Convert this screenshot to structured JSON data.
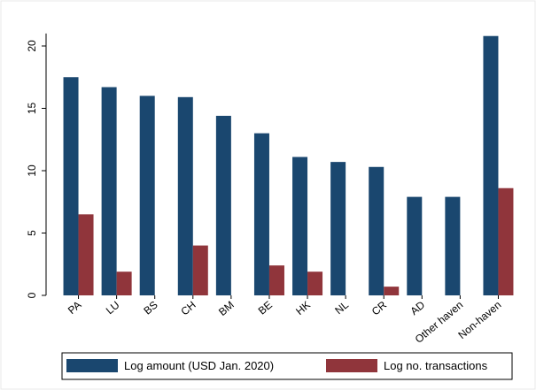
{
  "chart_data": {
    "type": "bar",
    "categories": [
      "PA",
      "LU",
      "BS",
      "CH",
      "BM",
      "BE",
      "HK",
      "NL",
      "CR",
      "AD",
      "Other haven",
      "Non-haven"
    ],
    "series": [
      {
        "name": "Log amount (USD Jan. 2020)",
        "color": "#1a476f",
        "values": [
          17.5,
          16.7,
          16.0,
          15.9,
          14.4,
          13.0,
          11.1,
          10.7,
          10.3,
          7.9,
          7.9,
          20.8
        ]
      },
      {
        "name": "Log no. transactions",
        "color": "#90353b",
        "values": [
          6.5,
          1.9,
          null,
          4.0,
          null,
          2.4,
          1.9,
          null,
          0.7,
          null,
          null,
          8.6
        ]
      }
    ],
    "ylim": [
      0,
      21
    ],
    "yticks": [
      0,
      5,
      10,
      15,
      20
    ]
  }
}
